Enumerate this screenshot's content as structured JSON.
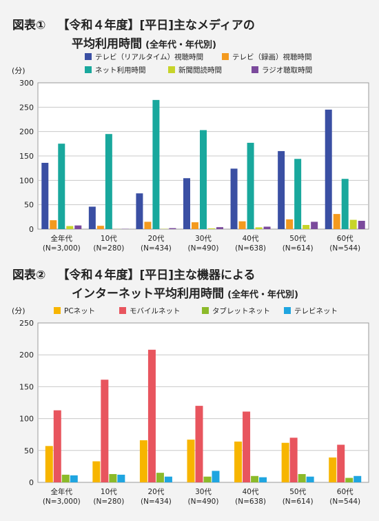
{
  "figure1": {
    "label": "図表①",
    "title_line1": "【令和４年度】[平日]主なメディアの",
    "title_line2": "平均利用時間",
    "title_suffix": "(全年代・年代別)"
  },
  "figure2": {
    "label": "図表②",
    "title_line1": "【令和４年度】[平日]主な機器による",
    "title_line2": "インターネット平均利用時間",
    "title_suffix": "(全年代・年代別)"
  },
  "chart_data": [
    {
      "type": "bar",
      "ylabel": "(分)",
      "ylim": [
        0,
        300
      ],
      "yticks": [
        0,
        50,
        100,
        150,
        200,
        250,
        300
      ],
      "categories": [
        "全年代",
        "10代",
        "20代",
        "30代",
        "40代",
        "50代",
        "60代"
      ],
      "category_sub": [
        "(N=3,000)",
        "(N=280)",
        "(N=434)",
        "(N=490)",
        "(N=638)",
        "(N=614)",
        "(N=544)"
      ],
      "grid": true,
      "legend_position": "top",
      "series": [
        {
          "name": "テレビ（リアルタイム）視聴時間",
          "color": "#3a4fa3",
          "values": [
            135.9,
            46.0,
            73.3,
            104.4,
            124.0,
            160.0,
            245.0
          ]
        },
        {
          "name": "テレビ（録画）視聴時間",
          "color": "#f39a1f",
          "values": [
            18.2,
            6.8,
            15.0,
            14.0,
            16.0,
            20.0,
            31.0
          ]
        },
        {
          "name": "ネット利用時間",
          "color": "#19a89d",
          "values": [
            175.2,
            195.0,
            264.8,
            203.0,
            177.0,
            144.0,
            103.0
          ]
        },
        {
          "name": "新聞閲読時間",
          "color": "#c7d42a",
          "values": [
            6.3,
            0.2,
            0.5,
            1.5,
            3.6,
            8.5,
            19.0
          ]
        },
        {
          "name": "ラジオ聴取時間",
          "color": "#7b4a9c",
          "values": [
            7.5,
            0.5,
            2.0,
            4.0,
            5.0,
            15.0,
            17.0
          ]
        }
      ]
    },
    {
      "type": "bar",
      "ylabel": "(分)",
      "ylim": [
        0,
        250
      ],
      "yticks": [
        0,
        50,
        100,
        150,
        200,
        250
      ],
      "categories": [
        "全年代",
        "10代",
        "20代",
        "30代",
        "40代",
        "50代",
        "60代"
      ],
      "category_sub": [
        "(N=3,000)",
        "(N=280)",
        "(N=434)",
        "(N=490)",
        "(N=638)",
        "(N=614)",
        "(N=544)"
      ],
      "grid": true,
      "legend_position": "top",
      "series": [
        {
          "name": "PCネット",
          "color": "#f7b500",
          "values": [
            57.0,
            33.0,
            66.0,
            67.0,
            64.0,
            62.0,
            39.0
          ]
        },
        {
          "name": "モバイルネット",
          "color": "#e8555e",
          "values": [
            113.0,
            161.0,
            208.0,
            120.0,
            111.0,
            70.0,
            59.0
          ]
        },
        {
          "name": "タブレットネット",
          "color": "#8cba2a",
          "values": [
            12.0,
            13.0,
            15.0,
            9.0,
            10.0,
            13.0,
            7.0
          ]
        },
        {
          "name": "テレビネット",
          "color": "#1fa5e0",
          "values": [
            11.0,
            12.0,
            9.0,
            18.0,
            8.0,
            9.0,
            10.0
          ]
        }
      ]
    }
  ]
}
